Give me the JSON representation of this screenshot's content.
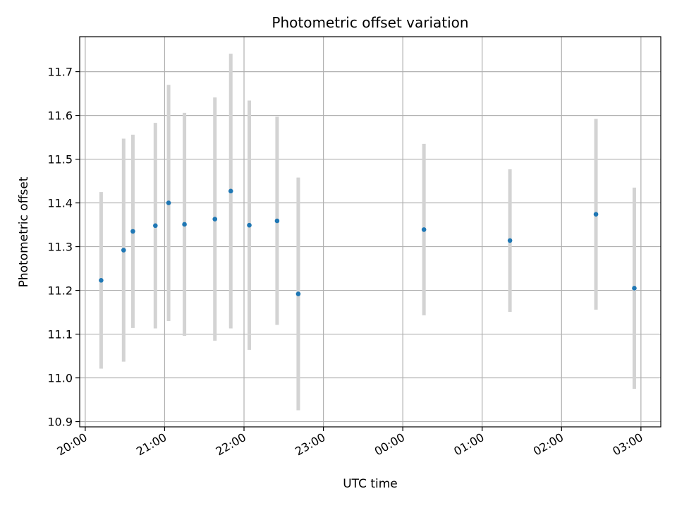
{
  "chart_data": {
    "type": "scatter",
    "title": "Photometric offset variation",
    "xlabel": "UTC time",
    "ylabel": "Photometric offset",
    "x_ticks": [
      "20:00",
      "21:00",
      "22:00",
      "23:00",
      "00:00",
      "01:00",
      "02:00",
      "03:00"
    ],
    "y_ticks": [
      "10.9",
      "11.0",
      "11.1",
      "11.2",
      "11.3",
      "11.4",
      "11.5",
      "11.6",
      "11.7"
    ],
    "xlim_hours": [
      19.93,
      27.25
    ],
    "ylim": [
      10.888,
      11.78
    ],
    "grid": true,
    "point_color": "#1f77b4",
    "errorbar_color": "#d3d3d3",
    "points": [
      {
        "time": "20:12",
        "y": 11.223,
        "err": 0.202
      },
      {
        "time": "20:29",
        "y": 11.292,
        "err": 0.255
      },
      {
        "time": "20:36",
        "y": 11.335,
        "err": 0.221
      },
      {
        "time": "20:53",
        "y": 11.348,
        "err": 0.235
      },
      {
        "time": "21:03",
        "y": 11.4,
        "err": 0.27
      },
      {
        "time": "21:15",
        "y": 11.351,
        "err": 0.255
      },
      {
        "time": "21:38",
        "y": 11.363,
        "err": 0.278
      },
      {
        "time": "21:50",
        "y": 11.427,
        "err": 0.314
      },
      {
        "time": "22:04",
        "y": 11.349,
        "err": 0.285
      },
      {
        "time": "22:25",
        "y": 11.359,
        "err": 0.238
      },
      {
        "time": "22:41",
        "y": 11.192,
        "err": 0.266
      },
      {
        "time": "00:16",
        "y": 11.339,
        "err": 0.196
      },
      {
        "time": "01:21",
        "y": 11.314,
        "err": 0.163
      },
      {
        "time": "02:26",
        "y": 11.374,
        "err": 0.218
      },
      {
        "time": "02:55",
        "y": 11.205,
        "err": 0.23
      }
    ]
  }
}
